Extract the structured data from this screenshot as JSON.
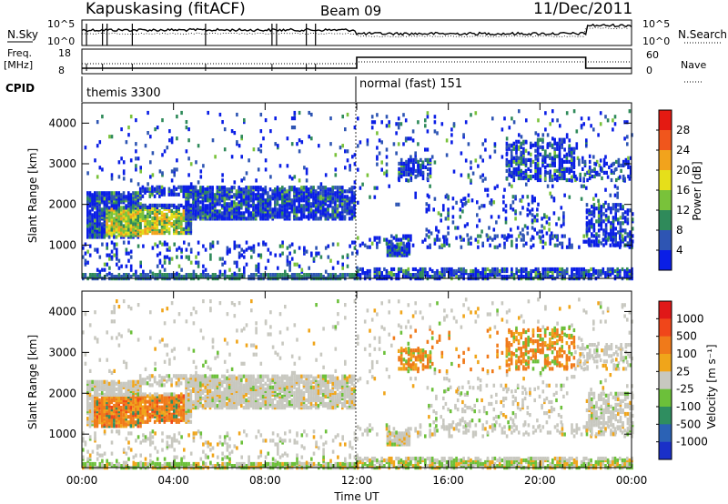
{
  "header": {
    "station": "Kapuskasing (fitACF)",
    "beam": "Beam 09",
    "date": "11/Dec/2011"
  },
  "summary": {
    "nsky_label": "N.Sky",
    "nsearch_label": "N.Search",
    "nsky_ticks": [
      "10^5",
      "10^0"
    ],
    "nsearch_ticks": [
      "10^5",
      "10^0"
    ],
    "freq_label": "Freq.",
    "freq_unit": "[MHz]",
    "freq_ticks": [
      "18",
      "8"
    ],
    "nave_label": "Nave",
    "nave_ticks": [
      "60",
      "0"
    ],
    "cpid_label": "CPID",
    "cpid_segments": [
      {
        "text": "themis 3300",
        "start_hour": 0
      },
      {
        "text": "normal (fast) 151",
        "start_hour": 12
      }
    ]
  },
  "chart_data": [
    {
      "type": "heatmap",
      "name": "power",
      "ylabel": "Slant Range [km]",
      "xlabel": "Time UT",
      "xlim": [
        0,
        24
      ],
      "ylim": [
        180,
        4500
      ],
      "x_ticks": [
        "00:00",
        "04:00",
        "08:00",
        "12:00",
        "16:00",
        "20:00",
        "00:00"
      ],
      "y_ticks": [
        1000,
        2000,
        3000,
        4000
      ],
      "colorbar": {
        "label": "Power [dB]",
        "ticks": [
          "4",
          "8",
          "12",
          "16",
          "20",
          "24",
          "28"
        ],
        "colors": [
          "#0a1ee6",
          "#2e55b3",
          "#2f8a5a",
          "#79c23a",
          "#e6df1a",
          "#f2a31c",
          "#f0561c",
          "#e41a12"
        ]
      }
    },
    {
      "type": "heatmap",
      "name": "velocity",
      "ylabel": "Slant Range [km]",
      "xlabel": "Time UT",
      "xlim": [
        0,
        24
      ],
      "ylim": [
        180,
        4500
      ],
      "x_ticks": [
        "00:00",
        "04:00",
        "08:00",
        "12:00",
        "16:00",
        "20:00",
        "00:00"
      ],
      "y_ticks": [
        1000,
        2000,
        3000,
        4000
      ],
      "colorbar": {
        "label": "Velocity [m s⁻¹]",
        "ticks": [
          "1000",
          "500",
          "100",
          "25",
          "-25",
          "-100",
          "-500",
          "-1000"
        ],
        "colors": [
          "#1a30c8",
          "#2b62b5",
          "#2f8e60",
          "#6cc03a",
          "#c8c8c0",
          "#f0a51a",
          "#f07a1a",
          "#f0461a",
          "#e01818"
        ]
      }
    }
  ],
  "x_axis_title": "Time UT"
}
